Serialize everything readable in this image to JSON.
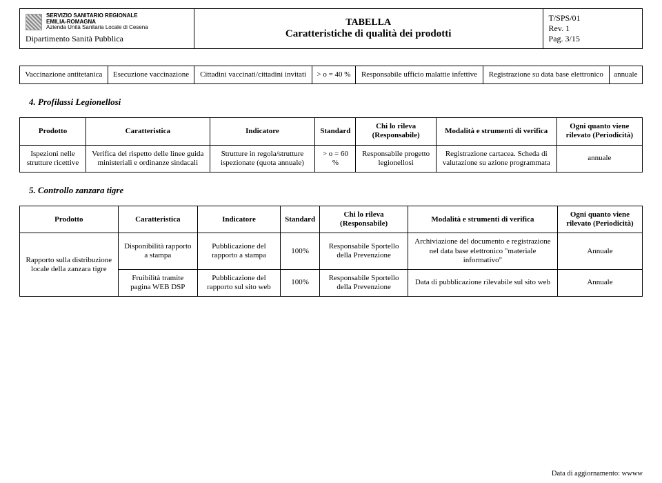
{
  "header": {
    "logo_line1": "SERVIZIO SANITARIO REGIONALE",
    "logo_line2": "EMILIA-ROMAGNA",
    "logo_line3": "Azienda Unità Sanitaria Locale di Cesena",
    "department": "Dipartimento Sanità Pubblica",
    "title_top": "TABELLA",
    "title_bottom": "Caratteristiche di qualità dei prodotti",
    "code": "T/SPS/01",
    "rev": "Rev. 1",
    "page": "Pag. 3/15"
  },
  "columns": {
    "prodotto": "Prodotto",
    "caratteristica": "Caratteristica",
    "indicatore": "Indicatore",
    "standard": "Standard",
    "chi": "Chi lo rileva (Responsabile)",
    "modalita": "Modalità e strumenti di verifica",
    "freq": "Ogni quanto viene rilevato (Periodicità)"
  },
  "t1": {
    "r1": {
      "prodotto": "Vaccinazione antitetanica",
      "caratteristica": "Esecuzione vaccinazione",
      "indicatore": "Cittadini vaccinati/cittadini invitati",
      "standard": "> o = 40 %",
      "chi": "Responsabile ufficio malattie infettive",
      "modalita": "Registrazione su data base elettronico",
      "freq": "annuale"
    }
  },
  "sec4": "4.  Profilassi Legionellosi",
  "t2": {
    "r1": {
      "prodotto": "Ispezioni nelle strutture ricettive",
      "caratteristica": "Verifica del rispetto delle linee guida ministeriali e ordinanze sindacali",
      "indicatore": "Strutture in regola/strutture ispezionate (quota annuale)",
      "standard": "> o = 60 %",
      "chi": "Responsabile progetto legionellosi",
      "modalita": "Registrazione cartacea. Scheda di valutazione su azione programmata",
      "freq": "annuale"
    }
  },
  "sec5": "5.  Controllo zanzara tigre",
  "t3": {
    "r1": {
      "prodotto": "Rapporto sulla distribuzione locale della zanzara tigre",
      "caratteristica": "Disponibilità rapporto a stampa",
      "indicatore": "Pubblicazione del rapporto a stampa",
      "standard": "100%",
      "chi": "Responsabile Sportello della Prevenzione",
      "modalita": "Archiviazione del documento e registrazione nel data base elettronico \"materiale informativo\"",
      "freq": "Annuale"
    },
    "r2": {
      "caratteristica": "Fruibilità tramite pagina WEB DSP",
      "indicatore": "Pubblicazione del rapporto sul sito web",
      "standard": "100%",
      "chi": "Responsabile Sportello della Prevenzione",
      "modalita": "Data di pubblicazione rilevabile sul sito web",
      "freq": "Annuale"
    }
  },
  "footer": "Data di aggiornamento: wwww"
}
